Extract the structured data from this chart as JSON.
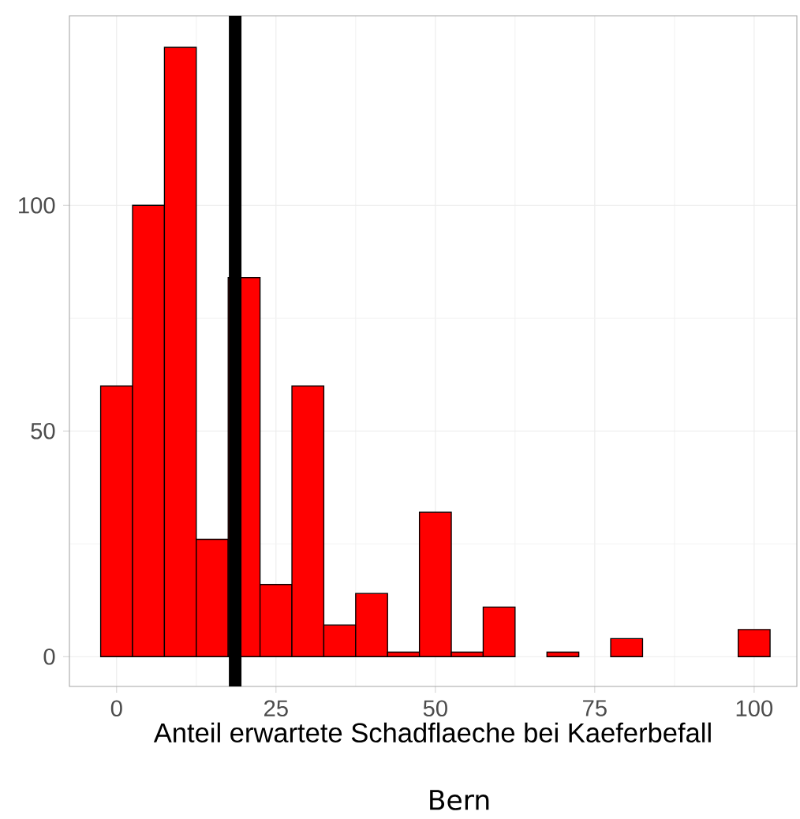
{
  "chart_data": {
    "type": "histogram",
    "xlabel": "Anteil erwartete Schadflaeche bei Kaeferbefall",
    "bins": [
      -2.5,
      2.5,
      7.5,
      12.5,
      17.5,
      22.5,
      27.5,
      32.5,
      37.5,
      42.5,
      47.5,
      52.5,
      57.5,
      62.5,
      67.5,
      72.5,
      77.5,
      82.5,
      87.5,
      92.5,
      97.5,
      102.5
    ],
    "values": [
      60,
      100,
      135,
      26,
      84,
      16,
      60,
      7,
      14,
      1,
      32,
      1,
      11,
      0,
      1,
      0,
      4,
      0,
      0,
      0,
      6
    ],
    "color": "#ff0000",
    "xlim": [
      -7.4,
      106.7
    ],
    "ylim": [
      -6.6,
      142
    ],
    "xticks": [
      0,
      25,
      50,
      75,
      100
    ],
    "yticks": [
      0,
      50,
      100
    ],
    "grid": true,
    "ref_lines": [
      {
        "axis": "x",
        "value": 18.6,
        "color": "#000000"
      }
    ],
    "annotations": [
      "Bern"
    ]
  }
}
